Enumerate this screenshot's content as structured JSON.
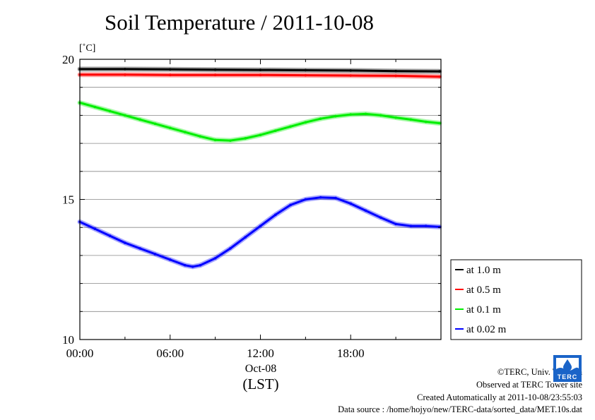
{
  "chart_data": {
    "type": "line",
    "title": "Soil Temperature / 2011-10-08",
    "ylabel": "[˚C]",
    "xlabel": "(LST)",
    "x_date_label": "Oct-08",
    "ylim": [
      10,
      20
    ],
    "y_major_ticks": [
      10,
      15,
      20
    ],
    "y_minor_step": 1,
    "xlim": [
      "00:00",
      "24:00"
    ],
    "x_tick_labels": [
      "00:00",
      "06:00",
      "12:00",
      "18:00"
    ],
    "x_minor_step_hours": 3,
    "grid": true,
    "legend_position": "right",
    "series": [
      {
        "name": "at 1.0 m",
        "color": "#000000",
        "x": [
          0,
          3,
          6,
          9,
          12,
          15,
          18,
          21,
          23.9
        ],
        "y": [
          19.65,
          19.65,
          19.64,
          19.63,
          19.62,
          19.61,
          19.6,
          19.58,
          19.57
        ]
      },
      {
        "name": "at 0.5 m",
        "color": "#ff0000",
        "x": [
          0,
          3,
          6,
          9,
          12,
          15,
          18,
          21,
          23.9
        ],
        "y": [
          19.45,
          19.45,
          19.44,
          19.44,
          19.44,
          19.43,
          19.42,
          19.41,
          19.38
        ]
      },
      {
        "name": "at 0.1 m",
        "color": "#00ee00",
        "x": [
          0,
          1,
          2,
          3,
          4,
          5,
          6,
          7,
          8,
          9,
          10,
          11,
          12,
          13,
          14,
          15,
          16,
          17,
          18,
          19,
          20,
          21,
          22,
          23,
          23.9
        ],
        "y": [
          18.45,
          18.3,
          18.15,
          18.0,
          17.85,
          17.7,
          17.55,
          17.4,
          17.25,
          17.12,
          17.1,
          17.18,
          17.3,
          17.45,
          17.6,
          17.75,
          17.88,
          17.97,
          18.03,
          18.05,
          18.0,
          17.92,
          17.85,
          17.77,
          17.72
        ]
      },
      {
        "name": "at 0.02 m",
        "color": "#0000ff",
        "x": [
          0,
          1,
          2,
          3,
          4,
          5,
          6,
          7,
          7.5,
          8,
          9,
          10,
          11,
          12,
          13,
          14,
          15,
          16,
          17,
          18,
          19,
          20,
          21,
          22,
          23,
          23.9
        ],
        "y": [
          14.2,
          13.95,
          13.7,
          13.45,
          13.25,
          13.05,
          12.85,
          12.65,
          12.6,
          12.65,
          12.9,
          13.25,
          13.65,
          14.05,
          14.45,
          14.8,
          15.0,
          15.07,
          15.05,
          14.85,
          14.6,
          14.35,
          14.12,
          14.05,
          14.05,
          14.02
        ]
      }
    ]
  },
  "credits": {
    "copyright": "©TERC, Univ. Tsukuba",
    "observed": "Observed at TERC Tower site",
    "created": "Created Automatically at 2011-10-08/23:55:03",
    "source": "Data source : /home/hojyo/new/TERC-data/sorted_data/MET.10s.dat"
  },
  "logo": {
    "text": "TERC",
    "color": "#1a64c8",
    "icon": "terc-logo-icon"
  }
}
